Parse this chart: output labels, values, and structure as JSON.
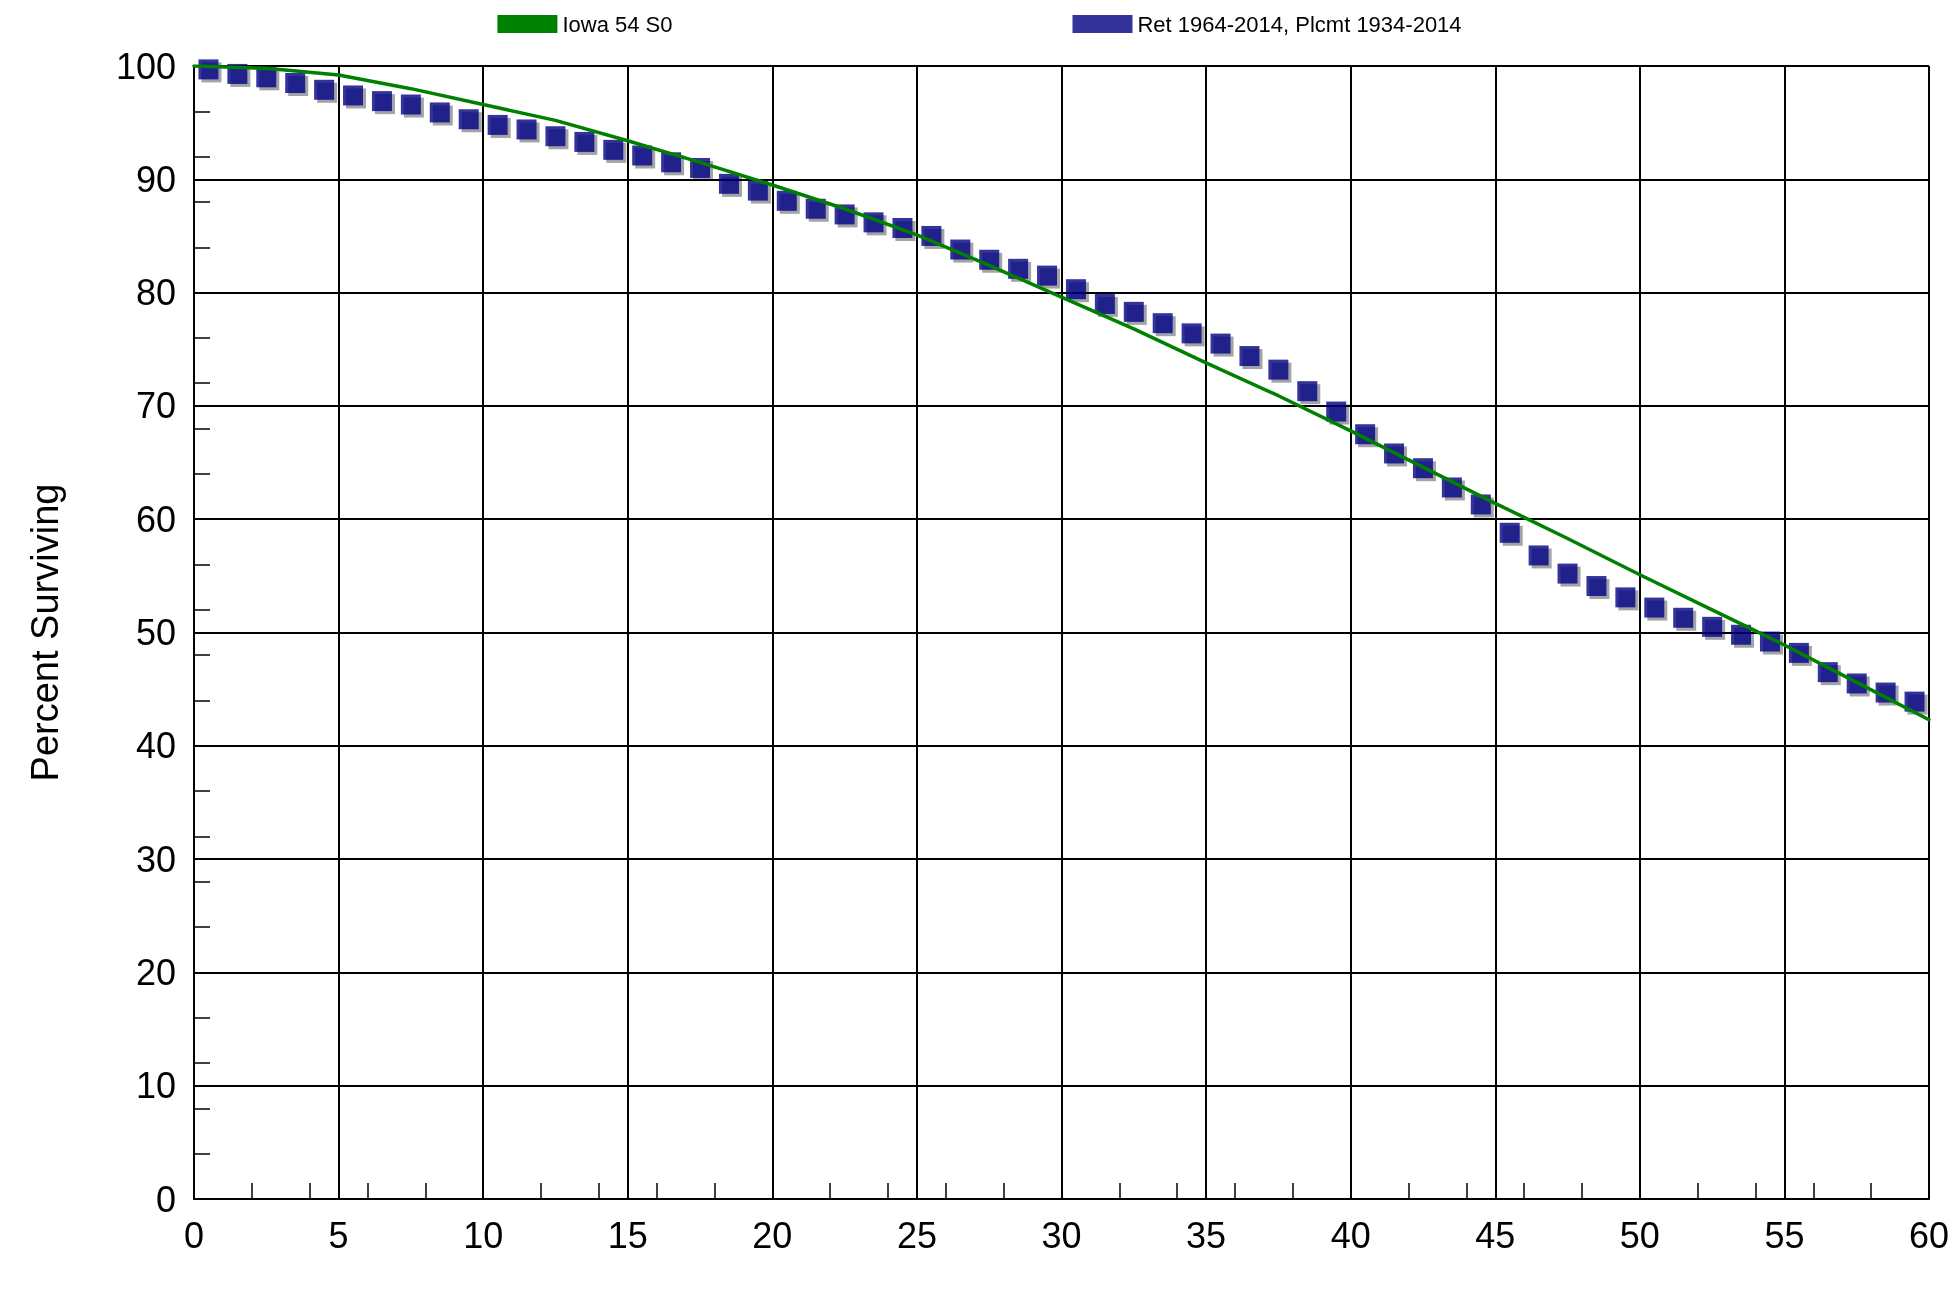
{
  "chart_data": {
    "type": "scatter",
    "ylabel": "Percent Surviving",
    "xlim": [
      0,
      60
    ],
    "xticks": [
      0,
      5,
      10,
      15,
      20,
      25,
      30,
      35,
      40,
      45,
      50,
      55,
      60
    ],
    "ylim": [
      0,
      100
    ],
    "yticks": [
      0,
      10,
      20,
      30,
      40,
      50,
      60,
      70,
      80,
      90,
      100
    ],
    "grid": true,
    "legend": "top",
    "marker": "square",
    "series": [
      {
        "name": "Iowa 54 S0",
        "type": "line",
        "color": "#008000",
        "line_style": "solid",
        "marker": "none",
        "x": [
          0,
          2.5,
          5,
          7.5,
          10,
          12.5,
          15,
          17.5,
          20,
          22.5,
          25,
          27.5,
          30,
          32.5,
          35,
          37.5,
          40,
          42.5,
          45,
          47.5,
          50,
          52.5,
          55,
          57.5,
          60
        ],
        "values": [
          100,
          99.8,
          99.2,
          98,
          96.6,
          95.2,
          93.4,
          91.5,
          89.5,
          87.4,
          85.1,
          82.4,
          79.6,
          76.8,
          73.8,
          70.9,
          67.8,
          64.6,
          61.4,
          58.3,
          55.1,
          52,
          48.9,
          45.6,
          42.3
        ]
      },
      {
        "name": "Ret 1964-2014, Plcmt 1934-2014",
        "color": "#000080",
        "x": [
          0.5,
          1.5,
          2.5,
          3.5,
          4.5,
          5.5,
          6.5,
          7.5,
          8.5,
          9.5,
          10.5,
          11.5,
          12.5,
          13.5,
          14.5,
          15.5,
          16.5,
          17.5,
          18.5,
          19.5,
          20.5,
          21.5,
          22.5,
          23.5,
          24.5,
          25.5,
          26.5,
          27.5,
          28.5,
          29.5,
          30.5,
          31.5,
          32.5,
          33.5,
          34.5,
          35.5,
          36.5,
          37.5,
          38.5,
          39.5,
          40.5,
          41.5,
          42.5,
          43.5,
          44.5,
          45.5,
          46.5,
          47.5,
          48.5,
          49.5,
          50.5,
          51.5,
          52.5,
          53.5,
          54.5,
          55.5,
          56.5,
          57.5,
          58.5,
          59.5
        ],
        "values": [
          99.7,
          99.3,
          99.0,
          98.5,
          97.9,
          97.4,
          96.9,
          96.6,
          95.9,
          95.3,
          94.8,
          94.4,
          93.8,
          93.3,
          92.6,
          92.1,
          91.5,
          91.0,
          89.6,
          89.0,
          88.1,
          87.4,
          86.9,
          86.2,
          85.7,
          85.0,
          83.8,
          82.9,
          82.1,
          81.5,
          80.3,
          79.0,
          78.3,
          77.3,
          76.4,
          75.5,
          74.4,
          73.2,
          71.3,
          69.5,
          67.5,
          65.8,
          64.5,
          62.8,
          61.3,
          58.8,
          56.8,
          55.2,
          54.1,
          53.1,
          52.2,
          51.3,
          50.5,
          49.8,
          49.2,
          48.2,
          46.5,
          45.5,
          44.7,
          43.9
        ]
      }
    ]
  }
}
